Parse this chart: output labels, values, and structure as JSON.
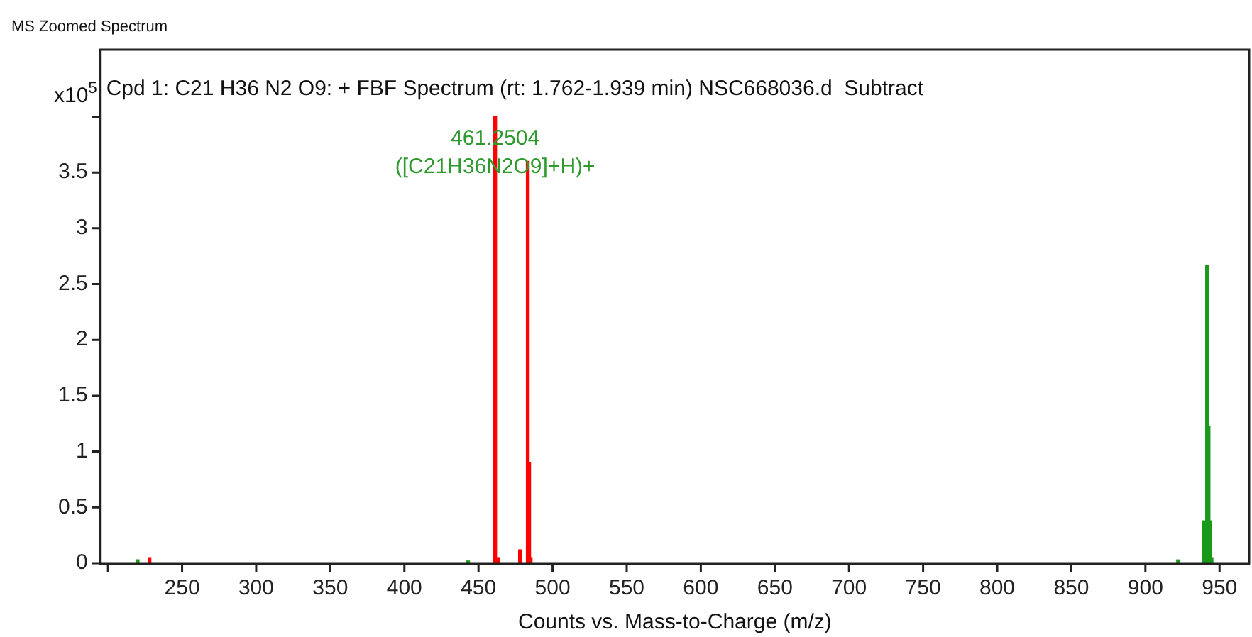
{
  "chart_data": {
    "type": "bar",
    "title": "MS Zoomed Spectrum",
    "subtitle": "Cpd 1: C21 H36 N2 O9: + FBF Spectrum (rt: 1.762-1.939 min) NSC668036.d  Subtract",
    "xlabel": "Counts vs. Mass-to-Charge (m/z)",
    "ylabel": "x10$^{5}$",
    "series": [
      {
        "color": "#ff0000",
        "x": [
          228,
          461.25,
          463,
          478,
          483.23,
          484.2,
          485.2
        ],
        "values": [
          0.05,
          4.0,
          0.05,
          0.12,
          3.6,
          0.9,
          0.05
        ]
      },
      {
        "color": "#1a9a1a",
        "x": [
          220,
          443,
          922,
          939.5,
          941.6,
          942.6,
          943.6,
          944.6
        ],
        "values": [
          0.03,
          0.02,
          0.03,
          0.38,
          2.67,
          1.23,
          0.38,
          0.05
        ]
      }
    ],
    "annotations": [
      {
        "text": "461.2504\n([C21H36N2O9]+H)+",
        "x": 461.25,
        "y": 4.0
      }
    ],
    "xlim": [
      195,
      970
    ],
    "xticks": [
      {
        "value": 200,
        "label": null
      },
      250,
      300,
      350,
      400,
      450,
      500,
      550,
      600,
      650,
      700,
      750,
      800,
      850,
      900,
      950
    ],
    "ylim": [
      0,
      4.6
    ],
    "yticks": [
      0,
      0.5,
      1,
      1.5,
      2,
      2.5,
      3,
      3.5,
      {
        "value": 4,
        "label": null
      }
    ],
    "grid": false,
    "legend": false
  }
}
